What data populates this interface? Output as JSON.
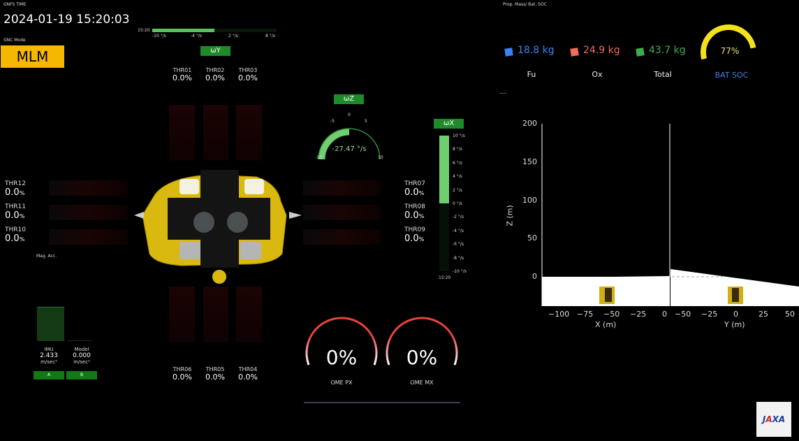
{
  "gnfs": {
    "label": "GNFS TIME",
    "time": "2024-01-19 15:20:03"
  },
  "gnc": {
    "label": "GNC Mode",
    "mode": "MLM",
    "color": "#f5b700"
  },
  "omega_y": {
    "label": "ωY",
    "time": "15:20",
    "ticks": [
      "-10 °/s",
      "-4 °/s",
      "2 °/s",
      "8 °/s"
    ],
    "range": [
      -10,
      8
    ],
    "value": -1
  },
  "omega_z": {
    "label": "ωZ",
    "value_text": "-27.47 °/s",
    "value": -27.47,
    "ticks": [
      "-10",
      "-5",
      "0",
      "5",
      "10"
    ]
  },
  "omega_x": {
    "label": "ωX",
    "time": "15:20",
    "value": 10,
    "ticks": [
      "10 °/s",
      "8 °/s",
      "6 °/s",
      "4 °/s",
      "2 °/s",
      "0 °/s",
      "-2 °/s",
      "-4 °/s",
      "-6 °/s",
      "-8 °/s",
      "-10 °/s"
    ]
  },
  "thrusters": {
    "top": [
      {
        "name": "THR01",
        "value": "0.0%"
      },
      {
        "name": "THR02",
        "value": "0.0%"
      },
      {
        "name": "THR03",
        "value": "0.0%"
      }
    ],
    "bottom": [
      {
        "name": "THR06",
        "value": "0.0%"
      },
      {
        "name": "THR05",
        "value": "0.0%"
      },
      {
        "name": "THR04",
        "value": "0.0%"
      }
    ],
    "left": [
      {
        "name": "THR12",
        "value": "0.0",
        "unit": "%"
      },
      {
        "name": "THR11",
        "value": "0.0",
        "unit": "%"
      },
      {
        "name": "THR10",
        "value": "0.0",
        "unit": "%"
      }
    ],
    "right": [
      {
        "name": "THR07",
        "value": "0.0",
        "unit": "%"
      },
      {
        "name": "THR08",
        "value": "0.0",
        "unit": "%"
      },
      {
        "name": "THR09",
        "value": "0.0",
        "unit": "%"
      }
    ]
  },
  "mag_acc": {
    "label": "Mag. Acc.",
    "imu": {
      "label": "IMU",
      "value": "2.433",
      "unit": "m/sec²"
    },
    "model": {
      "label": "Model",
      "value": "0.000",
      "unit": "m/sec²"
    },
    "btn_a": "A",
    "btn_b": "B"
  },
  "ome": [
    {
      "label": "OME PX",
      "value": "0%",
      "level": 0
    },
    {
      "label": "OME MX",
      "value": "0%",
      "level": 0
    }
  ],
  "prop": {
    "label": "Prop. Mass/ Bat. SOC",
    "items": [
      {
        "name": "Fu",
        "value": "18.8 kg",
        "color": "#3b82f6"
      },
      {
        "name": "Ox",
        "value": "24.9 kg",
        "color": "#f26b5b"
      },
      {
        "name": "Total",
        "value": "43.7 kg",
        "color": "#3fae49"
      }
    ],
    "bat": {
      "label": "BAT SOC",
      "value": "77%",
      "level": 0.77,
      "color": "#f5e11a",
      "label_color": "#4a7fe0"
    }
  },
  "plot": {
    "ylabel": "Z (m)",
    "xlabel": "X (m)",
    "ylabel2": "Y (m)",
    "yticks": [
      "200",
      "150",
      "100",
      "50",
      "0"
    ],
    "xticks": [
      "−100",
      "−75",
      "−50",
      "−25",
      "0"
    ],
    "yticks2": [
      "−50",
      "−25",
      "0",
      "25",
      "50"
    ]
  },
  "logo": "JAXA"
}
